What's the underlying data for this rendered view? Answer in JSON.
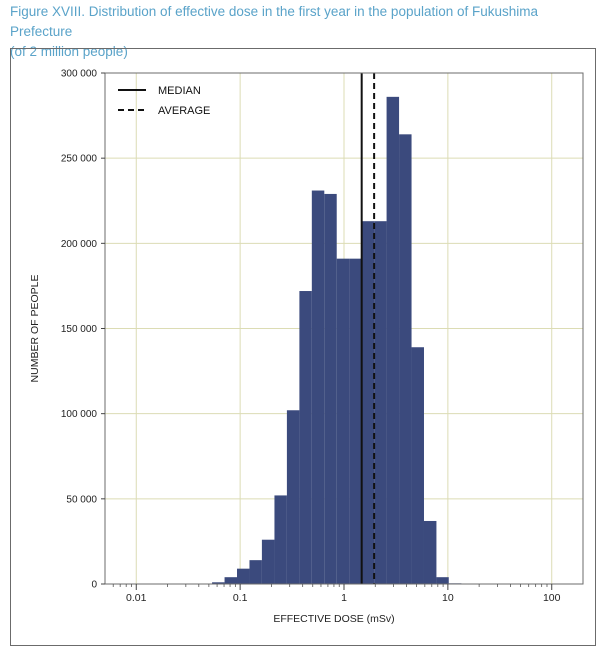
{
  "caption": {
    "line1": "Figure XVIII. Distribution of effective dose in the first year in the population of Fukushima Prefecture",
    "line2": "(of 2 million people)"
  },
  "colors": {
    "bar": "#3b4a7d",
    "grid": "#dcdcb4",
    "caption": "#5aa3c9"
  },
  "chart_data": {
    "type": "bar",
    "xlabel": "EFFECTIVE DOSE (mSv)",
    "ylabel": "NUMBER OF PEOPLE",
    "x_scale": "log",
    "xlim": [
      0.005,
      200
    ],
    "ylim": [
      0,
      300000
    ],
    "x_ticks": [
      {
        "value": 0.01,
        "label": "0.01"
      },
      {
        "value": 0.1,
        "label": "0.1"
      },
      {
        "value": 1,
        "label": "1"
      },
      {
        "value": 10,
        "label": "10"
      },
      {
        "value": 100,
        "label": "100"
      }
    ],
    "y_ticks": [
      {
        "value": 0,
        "label": "0"
      },
      {
        "value": 50000,
        "label": "50 000"
      },
      {
        "value": 100000,
        "label": "100 000"
      },
      {
        "value": 150000,
        "label": "150 000"
      },
      {
        "value": 200000,
        "label": "200 000"
      },
      {
        "value": 250000,
        "label": "250 000"
      },
      {
        "value": 300000,
        "label": "300 000"
      }
    ],
    "grid": true,
    "bins": [
      {
        "from": 0.0537,
        "to": 0.0708,
        "value": 1000
      },
      {
        "from": 0.0708,
        "to": 0.0933,
        "value": 4000
      },
      {
        "from": 0.0933,
        "to": 0.123,
        "value": 9000
      },
      {
        "from": 0.123,
        "to": 0.162,
        "value": 14000
      },
      {
        "from": 0.162,
        "to": 0.214,
        "value": 26000
      },
      {
        "from": 0.214,
        "to": 0.282,
        "value": 52000
      },
      {
        "from": 0.282,
        "to": 0.372,
        "value": 102000
      },
      {
        "from": 0.372,
        "to": 0.49,
        "value": 172000
      },
      {
        "from": 0.49,
        "to": 0.646,
        "value": 231000
      },
      {
        "from": 0.646,
        "to": 0.851,
        "value": 229000
      },
      {
        "from": 0.851,
        "to": 1.12,
        "value": 191000
      },
      {
        "from": 1.12,
        "to": 1.48,
        "value": 191000
      },
      {
        "from": 1.48,
        "to": 1.95,
        "value": 213000
      },
      {
        "from": 1.95,
        "to": 2.57,
        "value": 213000
      },
      {
        "from": 2.57,
        "to": 3.39,
        "value": 286000
      },
      {
        "from": 3.39,
        "to": 4.47,
        "value": 264000
      },
      {
        "from": 4.47,
        "to": 5.89,
        "value": 139000
      },
      {
        "from": 5.89,
        "to": 7.76,
        "value": 37000
      },
      {
        "from": 7.76,
        "to": 10.2,
        "value": 4000
      },
      {
        "from": 10.2,
        "to": 13.5,
        "value": 400
      }
    ],
    "median": 1.48,
    "average": 1.95,
    "legend": {
      "position": "top-left",
      "entries": [
        {
          "label": "MEDIAN",
          "style": "solid"
        },
        {
          "label": "AVERAGE",
          "style": "dashed"
        }
      ]
    }
  }
}
